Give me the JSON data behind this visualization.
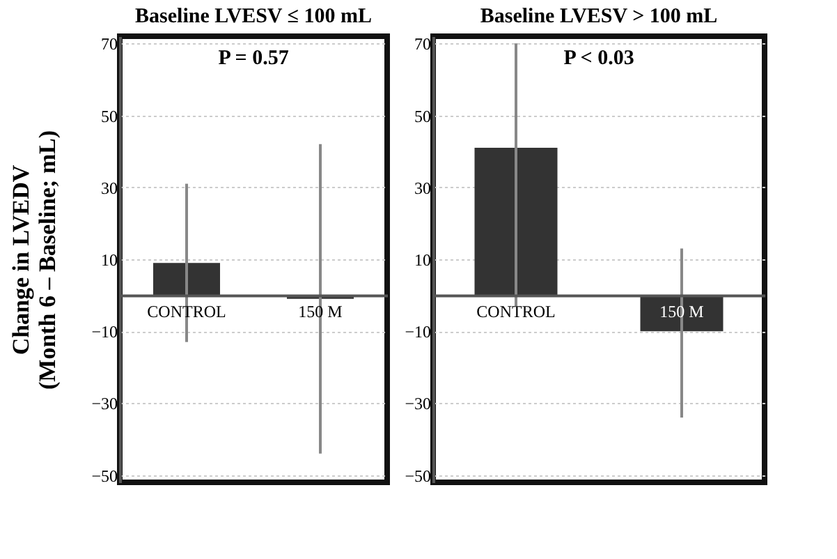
{
  "chart_data": [
    {
      "type": "bar",
      "title": "Baseline LVESV ≤ 100 mL",
      "ylabel": "Change in LVEDV\n(Month 6 – Baseline; mL)",
      "categories": [
        "CONTROL",
        "150 M"
      ],
      "series": [
        {
          "color": "#333333",
          "values": [
            9,
            -1
          ],
          "errors": [
            [
              -13,
              31
            ],
            [
              -44,
              42
            ]
          ]
        }
      ],
      "ylim": [
        -52,
        72
      ],
      "yticks": [
        70,
        50,
        30,
        10,
        -10,
        -30,
        -50
      ],
      "grid": "y",
      "annotations": [
        "P = 0.57"
      ]
    },
    {
      "type": "bar",
      "title": "Baseline LVESV > 100 mL",
      "categories": [
        "CONTROL",
        "150 M"
      ],
      "series": [
        {
          "color": "#333333",
          "values": [
            41,
            -10
          ],
          "errors": [
            [
              -3,
              70
            ],
            [
              -34,
              13
            ]
          ]
        }
      ],
      "ylim": [
        -52,
        72
      ],
      "yticks": [
        70,
        50,
        30,
        10,
        -10,
        -30,
        -50
      ],
      "grid": "y",
      "annotations": [
        "P < 0.03"
      ]
    }
  ]
}
